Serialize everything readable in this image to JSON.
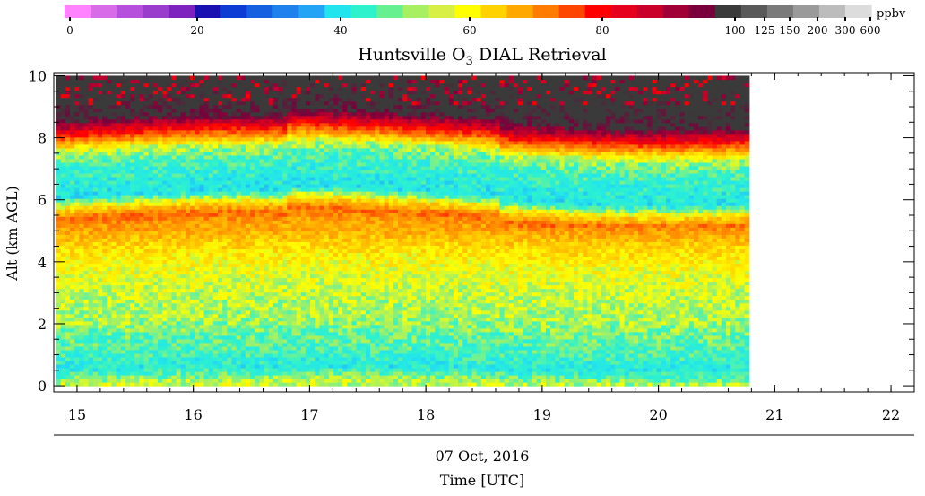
{
  "chart_data": {
    "type": "heatmap",
    "title": "Huntsville O₃ DIAL Retrieval",
    "title_parts": {
      "pre": "Huntsville O",
      "sub": "3",
      "post": " DIAL Retrieval"
    },
    "ylabel": "Alt (km AGL)",
    "date_label": "07 Oct, 2016",
    "xlabel": "Time [UTC]",
    "x_range": [
      14.8,
      22.2
    ],
    "x_ticks": [
      15,
      16,
      17,
      18,
      19,
      20,
      21,
      22
    ],
    "y_range": [
      -0.2,
      10.1
    ],
    "y_ticks": [
      0,
      2,
      4,
      6,
      8,
      10
    ],
    "data_time_range": [
      14.82,
      20.78
    ],
    "data_alt_range": [
      0,
      10
    ],
    "colorbar": {
      "unit": "ppbv",
      "tick_labels": [
        "0",
        "20",
        "40",
        "60",
        "80",
        "100",
        "125",
        "150",
        "200",
        "300",
        "600"
      ],
      "colors": [
        "#ff82ff",
        "#d86ce8",
        "#b650dc",
        "#9a3ccc",
        "#7d22be",
        "#1a0fb0",
        "#0d3cd4",
        "#1560e0",
        "#1d82ec",
        "#23a4f4",
        "#22e4ee",
        "#2ef2cc",
        "#66f090",
        "#a6f062",
        "#d8f046",
        "#ffff00",
        "#ffd200",
        "#ffa800",
        "#ff7c00",
        "#ff4600",
        "#ff0000",
        "#e6001e",
        "#c8002a",
        "#a00036",
        "#7a003c",
        "#3a3a3a",
        "#595959",
        "#7a7a7a",
        "#9a9a9a",
        "#bcbcbc",
        "#dcdcdc"
      ]
    },
    "ozone_profile": [
      {
        "alt": 0.0,
        "ppbv": 52
      },
      {
        "alt": 0.5,
        "ppbv": 42
      },
      {
        "alt": 1.0,
        "ppbv": 45
      },
      {
        "alt": 1.5,
        "ppbv": 47
      },
      {
        "alt": 2.0,
        "ppbv": 50
      },
      {
        "alt": 3.0,
        "ppbv": 52
      },
      {
        "alt": 4.0,
        "ppbv": 56
      },
      {
        "alt": 4.5,
        "ppbv": 60
      },
      {
        "alt": 5.0,
        "ppbv": 66
      },
      {
        "alt": 5.3,
        "ppbv": 72
      },
      {
        "alt": 5.6,
        "ppbv": 60
      },
      {
        "alt": 6.0,
        "ppbv": 41
      },
      {
        "alt": 6.5,
        "ppbv": 43
      },
      {
        "alt": 7.0,
        "ppbv": 45
      },
      {
        "alt": 7.5,
        "ppbv": 52
      },
      {
        "alt": 8.0,
        "ppbv": 78
      },
      {
        "alt": 8.5,
        "ppbv": 100
      },
      {
        "alt": 10.0,
        "ppbv": 105
      }
    ]
  }
}
